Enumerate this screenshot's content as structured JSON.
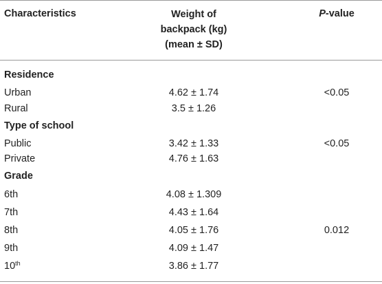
{
  "table": {
    "headers": {
      "characteristics": "Characteristics",
      "weight_line1": "Weight of",
      "weight_line2": "backpack (kg)",
      "weight_line3": "(mean ± SD)",
      "pvalue_italic": "P",
      "pvalue_rest": "-value"
    },
    "sections": [
      {
        "title": "Residence",
        "rows": [
          {
            "label": "Urban",
            "weight": "4.62 ± 1.74",
            "p": "<0.05"
          },
          {
            "label": "Rural",
            "weight": "3.5 ± 1.26",
            "p": ""
          }
        ]
      },
      {
        "title": "Type of school",
        "rows": [
          {
            "label": "Public",
            "weight": "3.42 ± 1.33",
            "p": "<0.05"
          },
          {
            "label": "Private",
            "weight": "4.76 ± 1.63",
            "p": ""
          }
        ]
      },
      {
        "title": "Grade",
        "rows": [
          {
            "label": "6th",
            "weight": "4.08 ± 1.309",
            "p": ""
          },
          {
            "label": "7th",
            "weight": "4.43 ± 1.64",
            "p": ""
          },
          {
            "label": "8th",
            "weight": "4.05 ± 1.76",
            "p": "0.012"
          },
          {
            "label": "9th",
            "weight": "4.09 ± 1.47",
            "p": ""
          },
          {
            "label_base": "10",
            "label_sup": "th",
            "weight": "3.86 ± 1.77",
            "p": ""
          }
        ]
      }
    ]
  }
}
